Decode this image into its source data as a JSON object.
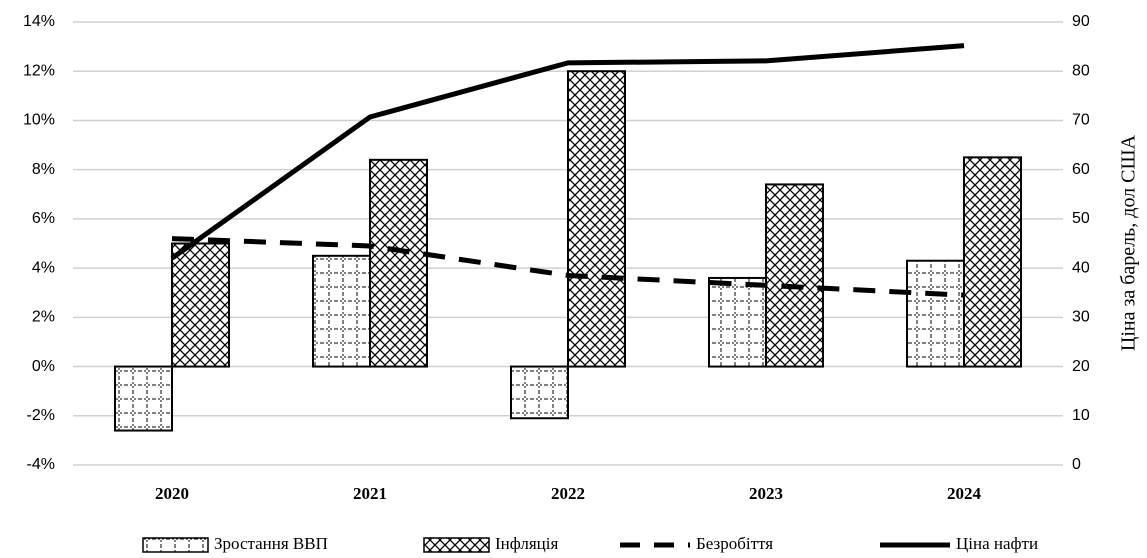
{
  "chart_data": {
    "type": "bar",
    "categories": [
      "2020",
      "2021",
      "2022",
      "2023",
      "2024"
    ],
    "series": [
      {
        "name": "Зростання ВВП",
        "type": "bar",
        "pattern": "dots",
        "color": "#000000",
        "values": [
          -2.6,
          4.5,
          -2.1,
          3.6,
          4.3
        ]
      },
      {
        "name": "Інфляція",
        "type": "bar",
        "pattern": "crosshatch",
        "color": "#000000",
        "values": [
          5.0,
          8.4,
          12.0,
          7.4,
          8.5
        ]
      },
      {
        "name": "Безробіття",
        "type": "line",
        "style": "dashed",
        "color": "#000000",
        "values": [
          5.2,
          4.9,
          3.7,
          3.3,
          2.9
        ]
      },
      {
        "name": "Ціна нафти",
        "type": "line",
        "style": "solid",
        "color": "#000000",
        "axis": "y2",
        "values": [
          42,
          70.7,
          81.7,
          82.1,
          85.2
        ]
      }
    ],
    "ylim": [
      -4,
      14
    ],
    "yticks": [
      {
        "value": -4,
        "label": "-4%"
      },
      {
        "value": -2,
        "label": "-2%"
      },
      {
        "value": 0,
        "label": "0%"
      },
      {
        "value": 2,
        "label": "2%"
      },
      {
        "value": 4,
        "label": "4%"
      },
      {
        "value": 6,
        "label": "6%"
      },
      {
        "value": 8,
        "label": "8%"
      },
      {
        "value": 10,
        "label": "10%"
      },
      {
        "value": 12,
        "label": "12%"
      },
      {
        "value": 14,
        "label": "14%"
      }
    ],
    "y2lim": [
      0,
      90
    ],
    "y2ticks": [
      0,
      10,
      20,
      30,
      40,
      50,
      60,
      70,
      80,
      90
    ],
    "y2label": "Ціна за барель, дол США",
    "grid": true,
    "legend": "bottom"
  }
}
